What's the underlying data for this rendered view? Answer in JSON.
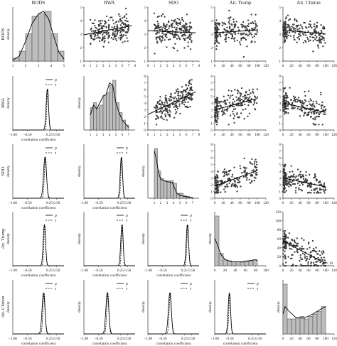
{
  "chart_data": {
    "type": "scatter",
    "variables": [
      "BODS",
      "RWA",
      "SDO",
      "Att. Trump",
      "Att. Clinton"
    ],
    "column_headers": [
      "BODS",
      "RWA",
      "SDO",
      "Att. Trump",
      "Att. Clinton"
    ],
    "row_labels": [
      "BODS",
      "RWA",
      "SDO",
      "Att. Trump",
      "Att. Clinton"
    ],
    "diagonal_ylabel": "density",
    "lower_ylabel": "density",
    "lower_xlabel": "correlation coefficient",
    "legend": [
      "ρ",
      "τ"
    ],
    "lower_xticks": [
      "−1.00",
      "−0.50",
      "0.25",
      "0.50"
    ],
    "bottom_right_extra_label": "−2 × 10",
    "axes": {
      "BODS": {
        "range": [
          1,
          5
        ],
        "ticks": [
          "1",
          "2",
          "3",
          "4",
          "5"
        ]
      },
      "RWA": {
        "range": [
          0,
          8
        ],
        "ticks": [
          "0",
          "1",
          "2",
          "3",
          "4",
          "5",
          "6",
          "7",
          "8"
        ]
      },
      "SDO": {
        "range": [
          0,
          8
        ],
        "ticks": [
          "0",
          "1",
          "2",
          "3",
          "4",
          "5",
          "6",
          "7",
          "8"
        ]
      },
      "Att. Trump": {
        "range": [
          0,
          120
        ],
        "ticks": [
          "0",
          "20",
          "40",
          "60",
          "80",
          "100",
          "120"
        ]
      },
      "Att. Clinton": {
        "range": [
          0,
          120
        ],
        "ticks": [
          "0",
          "20",
          "40",
          "60",
          "80",
          "100",
          "120"
        ]
      }
    },
    "histograms": [
      {
        "var": "BODS",
        "bins": [
          1,
          1.5,
          2,
          2.5,
          3,
          3.5,
          4,
          4.5,
          5
        ],
        "heights": [
          0.06,
          0.2,
          0.55,
          0.9,
          0.95,
          1.0,
          0.55,
          0.2
        ],
        "density": [
          [
            1,
            0.02
          ],
          [
            1.5,
            0.1
          ],
          [
            2,
            0.4
          ],
          [
            2.5,
            0.75
          ],
          [
            3,
            0.95
          ],
          [
            3.4,
            1.0
          ],
          [
            3.8,
            0.85
          ],
          [
            4.2,
            0.5
          ],
          [
            4.6,
            0.18
          ],
          [
            5,
            0.04
          ]
        ]
      },
      {
        "var": "RWA",
        "bins": [
          1,
          1.5,
          2,
          2.5,
          3,
          3.5,
          4,
          4.5,
          5,
          5.5,
          6,
          6.5,
          7
        ],
        "heights": [
          0.45,
          0.55,
          0.45,
          0.5,
          0.7,
          0.75,
          0.9,
          1.0,
          0.55,
          0.35,
          0.2,
          0.1
        ],
        "density": [
          [
            1,
            0.3
          ],
          [
            1.5,
            0.5
          ],
          [
            2,
            0.42
          ],
          [
            2.5,
            0.55
          ],
          [
            3,
            0.68
          ],
          [
            3.5,
            0.72
          ],
          [
            4,
            0.95
          ],
          [
            4.5,
            0.9
          ],
          [
            5,
            0.55
          ],
          [
            5.5,
            0.35
          ],
          [
            6,
            0.2
          ],
          [
            7,
            0.05
          ]
        ]
      },
      {
        "var": "SDO",
        "bins": [
          1,
          1.5,
          2,
          2.5,
          3,
          3.5,
          4,
          4.5,
          5,
          5.5,
          6,
          6.5,
          7
        ],
        "heights": [
          1.0,
          0.55,
          0.4,
          0.35,
          0.35,
          0.35,
          0.3,
          0.1,
          0.1,
          0.05,
          0.04,
          0.02
        ],
        "density": [
          [
            1,
            0.95
          ],
          [
            1.3,
            0.8
          ],
          [
            1.7,
            0.5
          ],
          [
            2,
            0.38
          ],
          [
            3,
            0.33
          ],
          [
            3.8,
            0.32
          ],
          [
            4.5,
            0.1
          ],
          [
            5,
            0.06
          ],
          [
            6,
            0.03
          ],
          [
            7,
            0.01
          ]
        ]
      },
      {
        "var": "Att. Trump",
        "bins": [
          0,
          10,
          20,
          30,
          40,
          50,
          60,
          70,
          80,
          90,
          100
        ],
        "heights": [
          1.0,
          0.25,
          0.12,
          0.1,
          0.08,
          0.08,
          0.07,
          0.08,
          0.1,
          0.12
        ],
        "density": [
          [
            0,
            0.55
          ],
          [
            5,
            0.45
          ],
          [
            15,
            0.22
          ],
          [
            25,
            0.12
          ],
          [
            40,
            0.08
          ],
          [
            60,
            0.08
          ],
          [
            80,
            0.1
          ],
          [
            95,
            0.12
          ],
          [
            100,
            0.1
          ]
        ]
      },
      {
        "var": "Att. Clinton",
        "bins": [
          0,
          10,
          20,
          30,
          40,
          50,
          60,
          70,
          80,
          90,
          100
        ],
        "heights": [
          1.0,
          0.3,
          0.3,
          0.32,
          0.35,
          0.3,
          0.35,
          0.4,
          0.45,
          0.55
        ],
        "density": [
          [
            0,
            0.4
          ],
          [
            5,
            0.55
          ],
          [
            15,
            0.45
          ],
          [
            30,
            0.33
          ],
          [
            50,
            0.32
          ],
          [
            70,
            0.4
          ],
          [
            85,
            0.48
          ],
          [
            100,
            0.55
          ]
        ]
      }
    ],
    "correlations": [
      {
        "row": "RWA",
        "col": "BODS",
        "center": 0.18,
        "spread": 0.04
      },
      {
        "row": "SDO",
        "col": "BODS",
        "center": 0.1,
        "spread": 0.05
      },
      {
        "row": "SDO",
        "col": "RWA",
        "center": 0.28,
        "spread": 0.04
      },
      {
        "row": "Att. Trump",
        "col": "BODS",
        "center": 0.08,
        "spread": 0.04
      },
      {
        "row": "Att. Trump",
        "col": "RWA",
        "center": 0.3,
        "spread": 0.04
      },
      {
        "row": "Att. Trump",
        "col": "SDO",
        "center": 0.35,
        "spread": 0.04
      },
      {
        "row": "Att. Clinton",
        "col": "BODS",
        "center": 0.05,
        "spread": 0.05
      },
      {
        "row": "Att. Clinton",
        "col": "RWA",
        "center": -0.2,
        "spread": 0.05
      },
      {
        "row": "Att. Clinton",
        "col": "SDO",
        "center": -0.25,
        "spread": 0.05
      },
      {
        "row": "Att. Clinton",
        "col": "Att. Trump",
        "center": -0.5,
        "spread": 0.04
      }
    ],
    "trends": [
      {
        "row": "BODS",
        "col": "RWA",
        "intercept": 2.95,
        "slope": 0.09
      },
      {
        "row": "BODS",
        "col": "SDO",
        "intercept": 3.25,
        "slope": -0.02
      },
      {
        "row": "BODS",
        "col": "Att. Trump",
        "intercept": 3.1,
        "slope": 0.002
      },
      {
        "row": "BODS",
        "col": "Att. Clinton",
        "intercept": 3.3,
        "slope": -0.003
      },
      {
        "row": "RWA",
        "col": "SDO",
        "intercept": 2.3,
        "slope": 0.45
      },
      {
        "row": "RWA",
        "col": "Att. Trump",
        "intercept": 3.0,
        "slope": 0.017
      },
      {
        "row": "RWA",
        "col": "Att. Clinton",
        "intercept": 4.0,
        "slope": -0.014
      },
      {
        "row": "SDO",
        "col": "Att. Trump",
        "intercept": 1.8,
        "slope": 0.023
      },
      {
        "row": "SDO",
        "col": "Att. Clinton",
        "intercept": 3.0,
        "slope": -0.013
      },
      {
        "row": "Att. Trump",
        "col": "Att. Clinton",
        "intercept": 55,
        "slope": -0.5
      }
    ],
    "grid": false,
    "legend_placement": "top-right"
  }
}
